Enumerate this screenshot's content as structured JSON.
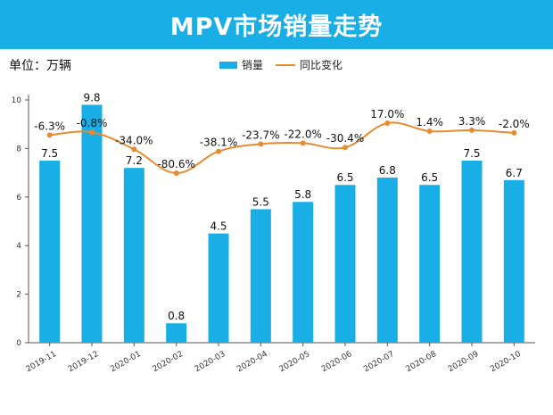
{
  "title": "MPV市场销量走势",
  "unit_label": "单位：万辆",
  "legend": {
    "bar": "销量",
    "line": "同比变化"
  },
  "colors": {
    "title_bg": "#1aaee6",
    "bar": "#1aaee6",
    "line": "#e88a2e",
    "axis": "#555555"
  },
  "chart_data": {
    "type": "bar",
    "title": "MPV市场销量走势",
    "ylabel": "单位：万辆",
    "ylim": [
      0,
      10
    ],
    "yticks": [
      0,
      2,
      4,
      6,
      8,
      10
    ],
    "categories": [
      "2019-11",
      "2019-12",
      "2020-01",
      "2020-02",
      "2020-03",
      "2020-04",
      "2020-05",
      "2020-06",
      "2020-07",
      "2020-08",
      "2020-09",
      "2020-10"
    ],
    "series": [
      {
        "name": "销量",
        "type": "bar",
        "values": [
          7.5,
          9.8,
          7.2,
          0.8,
          4.5,
          5.5,
          5.8,
          6.5,
          6.8,
          6.5,
          7.5,
          6.7
        ],
        "labels": [
          "7.5",
          "9.8",
          "7.2",
          "0.8",
          "4.5",
          "5.5",
          "5.8",
          "6.5",
          "6.8",
          "6.5",
          "7.5",
          "6.7"
        ]
      },
      {
        "name": "同比变化",
        "type": "line",
        "values": [
          -6.3,
          -0.8,
          -34.0,
          -80.6,
          -38.1,
          -23.7,
          -22.0,
          -30.4,
          17.0,
          1.4,
          3.3,
          -2.0
        ],
        "labels": [
          "-6.3%",
          "-0.8%",
          "-34.0%",
          "-80.6%",
          "-38.1%",
          "-23.7%",
          "-22.0%",
          "-30.4%",
          "17.0%",
          "1.4%",
          "3.3%",
          "-2.0%"
        ],
        "secondary_range": [
          -110,
          30
        ]
      }
    ]
  }
}
